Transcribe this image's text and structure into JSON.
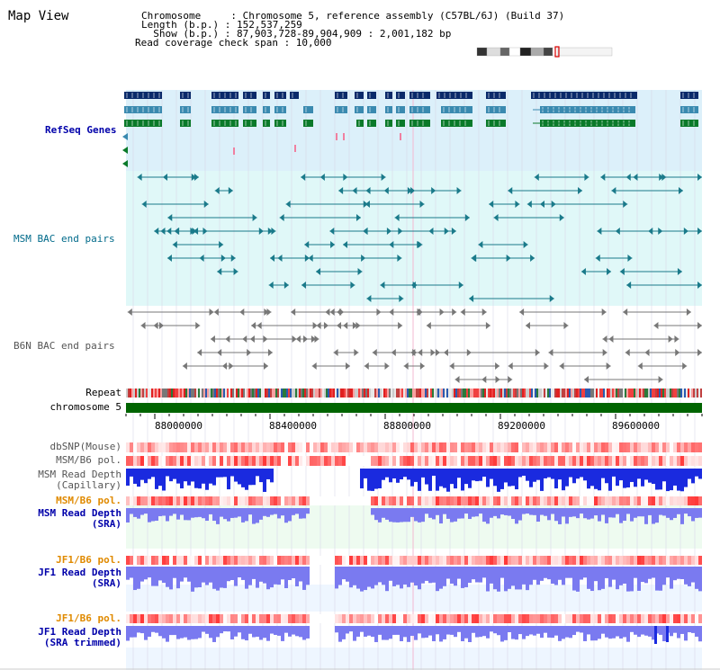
{
  "title": "Map View",
  "info": {
    "line1": "Chromosome     : Chromosome 5, reference assembly (C57BL/6J) (Build 37)",
    "line2": "Length (b.p.) : 152,537,259",
    "line3": "  Show (b.p.) : 87,903,728-89,904,909 : 2,001,182 bp",
    "line4": "Read coverage check span : 10,000"
  },
  "tracks": {
    "refseq": "RefSeq Genes",
    "msm_bac": "MSM BAC end pairs",
    "b6n_bac": "B6N BAC end pairs",
    "repeat": "Repeat",
    "chromosome": "chromosome 5",
    "dbsnp": "dbSNP(Mouse)",
    "msm_b6_pol": "MSM/B6 pol.",
    "msm_depth_cap_1": "MSM Read Depth",
    "msm_depth_cap_2": "(Capillary)",
    "msm_b6_pol2": "MSM/B6 pol.",
    "msm_depth_sra_1": "MSM Read Depth",
    "msm_depth_sra_2": "(SRA)",
    "jf1_b6_pol": "JF1/B6 pol.",
    "jf1_depth_sra_1": "JF1 Read Depth",
    "jf1_depth_sra_2": "(SRA)",
    "jf1_b6_pol2": "JF1/B6 pol.",
    "jf1_depth_trim_1": "JF1 Read Depth",
    "jf1_depth_trim_2": "(SRA trimmed)"
  },
  "axis_ticks": [
    "88000000",
    "88400000",
    "88800000",
    "89200000",
    "89600000"
  ],
  "colors": {
    "refseq_bg": "#dcf0fa",
    "bac_bg": "#e0f8f8",
    "gene_dark": "#0a2a6a",
    "gene_mid": "#3a8ab0",
    "gene_green": "#0a7a2a",
    "chromosome": "#006400",
    "depth_blue": "#1a2adf",
    "depth_light": "#7a7af0"
  }
}
